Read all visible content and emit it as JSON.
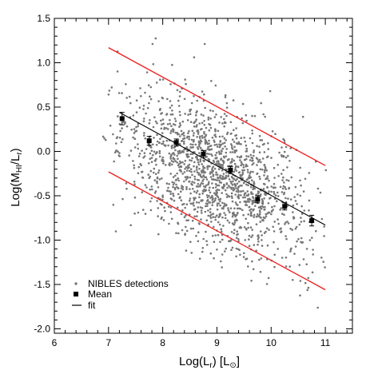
{
  "chart_data": {
    "type": "scatter",
    "xlabel": "Log(L_r) [L_⊙]",
    "ylabel": "Log(M_HI/L_r)",
    "xlim": [
      6.0,
      11.5
    ],
    "ylim": [
      -2.05,
      1.5
    ],
    "x_ticks": [
      "6",
      "7",
      "8",
      "9",
      "10",
      "11"
    ],
    "y_ticks": [
      "1.5",
      "1.0",
      "0.5",
      "0.0",
      "-0.5",
      "-1.0",
      "-1.5",
      "-2.0"
    ],
    "x_tick_values": [
      6,
      7,
      8,
      9,
      10,
      11
    ],
    "y_tick_values": [
      1.5,
      1.0,
      0.5,
      0.0,
      -0.5,
      -1.0,
      -1.5,
      -2.0
    ],
    "grid": false,
    "legend_position": "bottom-left",
    "legend": {
      "detections": "NIBLES detections",
      "mean": "Mean",
      "fit": "fit"
    },
    "colors": {
      "detections": "#777777",
      "mean": "#000000",
      "fit": "#000000",
      "bounds": "#ee1c1c"
    },
    "detections_cloud": {
      "count": 1600,
      "x_range": [
        6.9,
        11.05
      ],
      "relation": "y = 2.09 - 0.265x",
      "scatter_sigma": 0.38
    },
    "mean_points": {
      "x": [
        7.25,
        7.75,
        8.25,
        8.75,
        9.25,
        9.75,
        10.25,
        10.75
      ],
      "y": [
        0.37,
        0.12,
        0.1,
        -0.03,
        -0.21,
        -0.54,
        -0.62,
        -0.78
      ],
      "yerr": [
        0.07,
        0.05,
        0.04,
        0.04,
        0.04,
        0.04,
        0.04,
        0.06
      ]
    },
    "fit_line": {
      "x": [
        7.2,
        11.0
      ],
      "y": [
        0.44,
        -0.83
      ]
    },
    "upper_bound": {
      "x": [
        7.0,
        11.0
      ],
      "y": [
        1.17,
        -0.16
      ]
    },
    "lower_bound": {
      "x": [
        7.0,
        11.0
      ],
      "y": [
        -0.23,
        -1.56
      ]
    }
  }
}
